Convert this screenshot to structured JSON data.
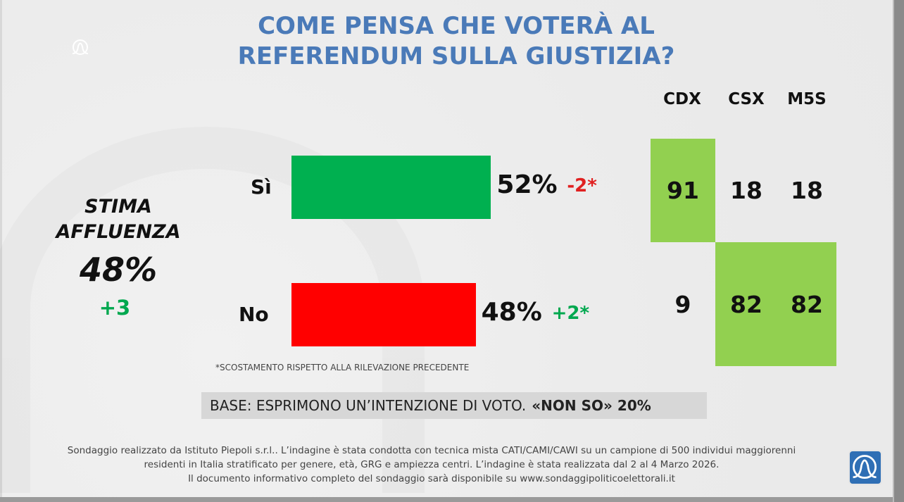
{
  "title_line1": "COME PENSA CHE VOTERÀ AL",
  "title_line2": "REFERENDUM SULLA GIUSTIZIA?",
  "turnout": {
    "label1": "STIMA",
    "label2": "AFFLUENZA",
    "value": "48%",
    "delta": "+3"
  },
  "chart_data": {
    "type": "bar",
    "title": "COME PENSA CHE VOTERÀ AL REFERENDUM SULLA GIUSTIZIA?",
    "categories": [
      "Sì",
      "No"
    ],
    "values": [
      52,
      48
    ],
    "value_labels": [
      "52%",
      "48%"
    ],
    "deltas": [
      "-2*",
      "+2*"
    ],
    "colors": [
      "#00b050",
      "#ff0000"
    ],
    "delta_colors": [
      "#e02020",
      "#00a84f"
    ],
    "xlim": [
      0,
      100
    ]
  },
  "table": {
    "columns": [
      "CDX",
      "CSX",
      "M5S"
    ],
    "rows": [
      {
        "label": "Sì",
        "values": [
          "91",
          "18",
          "18"
        ],
        "highlight": [
          true,
          false,
          false
        ]
      },
      {
        "label": "No",
        "values": [
          "9",
          "82",
          "82"
        ],
        "highlight": [
          false,
          true,
          true
        ]
      }
    ],
    "highlight_color": "#92d050"
  },
  "note": "*SCOSTAMENTO RISPETTO ALLA RILEVAZIONE PRECEDENTE",
  "base": {
    "text": "BASE: ESPRIMONO UN’INTENZIONE DI VOTO.",
    "nonso": "«NON SO» 20%"
  },
  "footer": [
    "Sondaggio realizzato da Istituto Piepoli s.r.l.. L’indagine è stata condotta con tecnica mista CATI/CAMI/CAWI su un campione di 500 individui maggiorenni",
    "residenti in Italia stratificato per genere, età, GRG e ampiezza centri. L’indagine è stata realizzata dal 2 al 4 Marzo 2026.",
    "Il documento informativo completo del sondaggio sarà disponibile su www.sondaggipoliticoelettorali.it"
  ]
}
